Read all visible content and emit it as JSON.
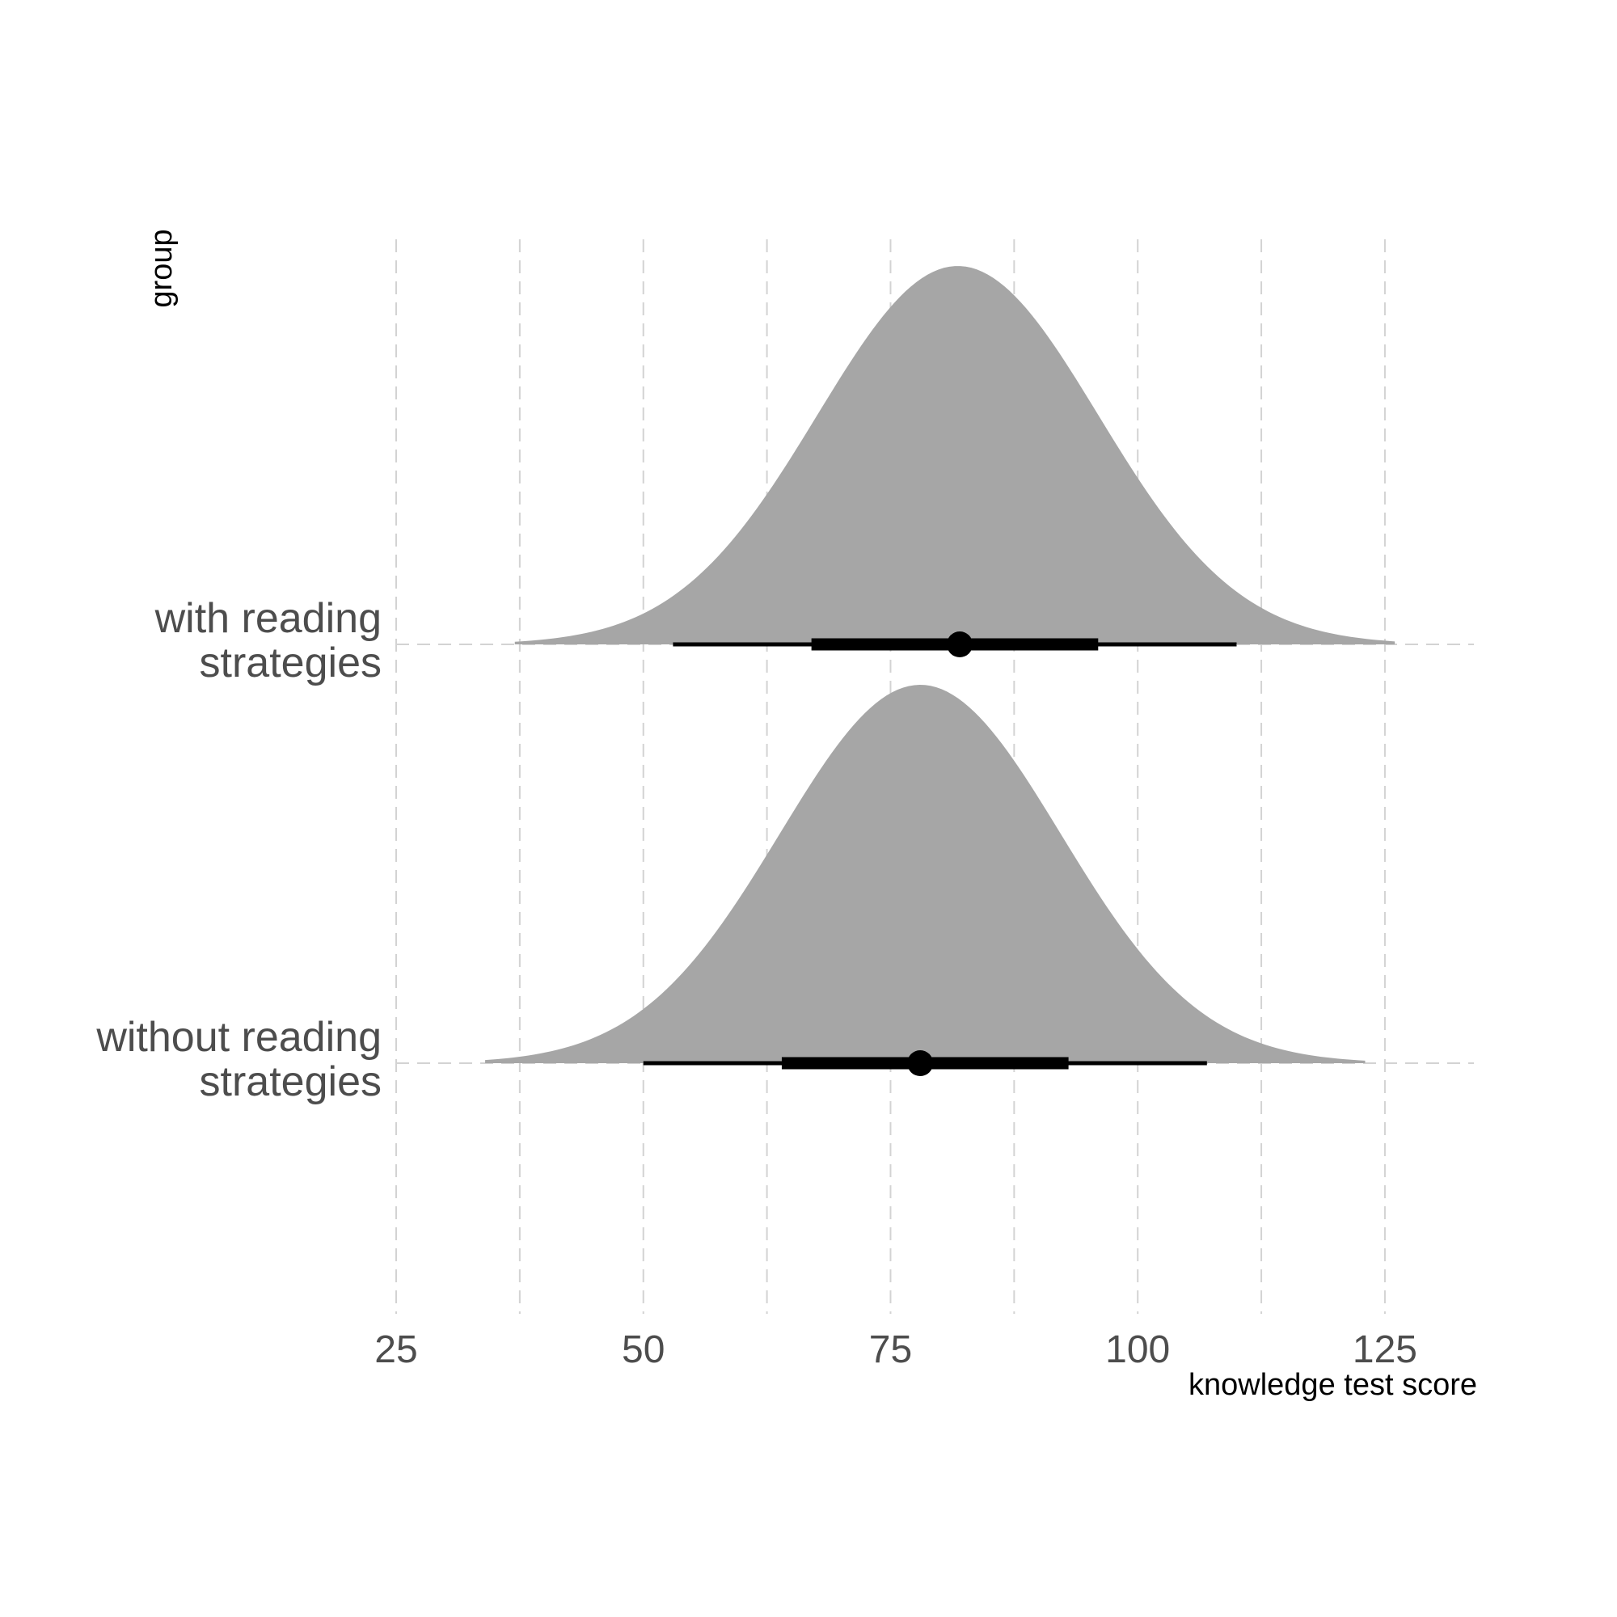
{
  "chart_data": {
    "type": "halfeye",
    "xlabel": "knowledge test score",
    "ylabel": "group",
    "xlim": [
      25,
      134
    ],
    "x_ticks": [
      25,
      50,
      75,
      100,
      125
    ],
    "x_minor_grid": [
      37.5,
      62.5,
      87.5,
      112.5
    ],
    "grid": true,
    "fill_color": "#a6a6a6",
    "interval_color": "#000000",
    "grid_color": "#d3d3d3",
    "groups": [
      {
        "label_lines": [
          "without reading",
          "strategies"
        ],
        "mean": 78,
        "sd": 14.2,
        "range": [
          34,
          123
        ],
        "point": 78,
        "interval_66": [
          64,
          93
        ],
        "interval_95": [
          50,
          107
        ]
      },
      {
        "label_lines": [
          "with reading",
          "strategies"
        ],
        "mean": 81.8,
        "sd": 14.2,
        "range": [
          37,
          126
        ],
        "point": 82,
        "interval_66": [
          67,
          96
        ],
        "interval_95": [
          53,
          110
        ]
      }
    ]
  }
}
